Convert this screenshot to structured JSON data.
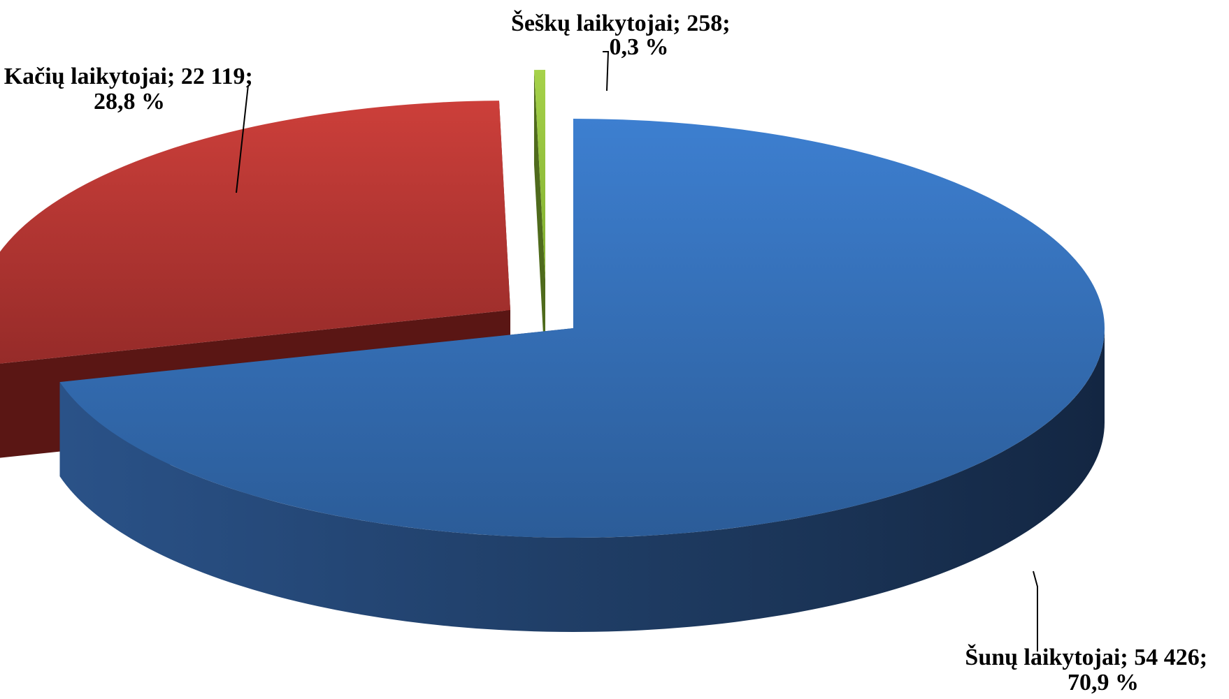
{
  "chart_data": {
    "type": "pie",
    "style": "3d-exploded",
    "legend": "none",
    "slices": [
      {
        "name": "Šunų laikytojai",
        "value": 54426,
        "percent": 70.9,
        "label_line1": "Šunų laikytojai; 54 426;",
        "label_line2": "70,9 %",
        "color": "#3a78c6",
        "side_color": "#1f3d66"
      },
      {
        "name": "Kačių laikytojai",
        "value": 22119,
        "percent": 28.8,
        "label_line1": "Kačių laikytojai; 22 119;",
        "label_line2": "28,8 %",
        "color": "#c43c38",
        "side_color": "#5a1614"
      },
      {
        "name": "Šeškų laikytojai",
        "value": 258,
        "percent": 0.3,
        "label_line1": "Šeškų laikytojai; 258;",
        "label_line2": "0,3 %",
        "color": "#9acb3c",
        "side_color": "#4f6b1c"
      }
    ]
  }
}
